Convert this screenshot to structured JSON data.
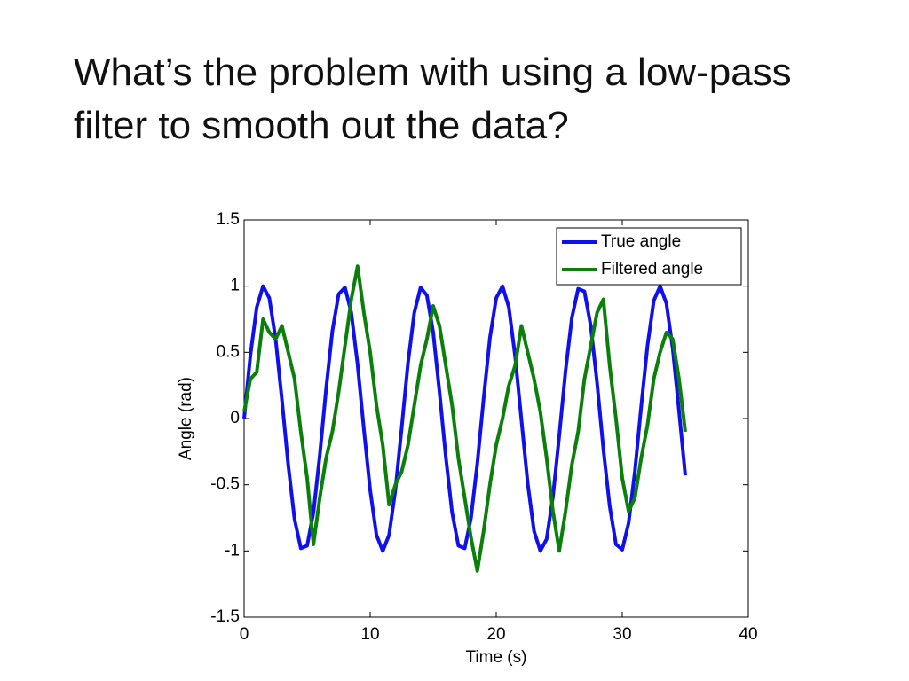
{
  "title": "What’s the problem with using a low-pass filter to smooth out the data?",
  "chart_data": {
    "type": "line",
    "xlabel": "Time (s)",
    "ylabel": "Angle (rad)",
    "x": [
      0,
      0.5,
      1,
      1.5,
      2,
      2.5,
      3,
      3.5,
      4,
      4.5,
      5,
      5.5,
      6,
      6.5,
      7,
      7.5,
      8,
      8.5,
      9,
      9.5,
      10,
      10.5,
      11,
      11.5,
      12,
      12.5,
      13,
      13.5,
      14,
      14.5,
      15,
      15.5,
      16,
      16.5,
      17,
      17.5,
      18,
      18.5,
      19,
      19.5,
      20,
      20.5,
      21,
      21.5,
      22,
      22.5,
      23,
      23.5,
      24,
      24.5,
      25,
      25.5,
      26,
      26.5,
      27,
      27.5,
      28,
      28.5,
      29,
      29.5,
      30,
      30.5,
      31,
      31.5,
      32,
      32.5,
      33,
      33.5,
      34,
      34.5,
      35
    ],
    "series": [
      {
        "name": "True angle",
        "color": "#1010ee",
        "values": [
          0,
          0.48,
          0.84,
          1.0,
          0.91,
          0.6,
          0.14,
          -0.35,
          -0.76,
          -0.98,
          -0.96,
          -0.71,
          -0.28,
          0.22,
          0.66,
          0.94,
          0.99,
          0.8,
          0.41,
          -0.08,
          -0.54,
          -0.88,
          -1.0,
          -0.88,
          -0.54,
          -0.07,
          0.42,
          0.8,
          0.99,
          0.93,
          0.65,
          0.2,
          -0.29,
          -0.71,
          -0.96,
          -0.98,
          -0.75,
          -0.34,
          0.15,
          0.61,
          0.91,
          1.0,
          0.84,
          0.47,
          -0.01,
          -0.49,
          -0.85,
          -1.0,
          -0.91,
          -0.59,
          -0.13,
          0.36,
          0.76,
          0.98,
          0.96,
          0.7,
          0.27,
          -0.23,
          -0.66,
          -0.95,
          -0.99,
          -0.79,
          -0.4,
          0.09,
          0.55,
          0.89,
          1.0,
          0.87,
          0.53,
          0.06,
          -0.43
        ]
      },
      {
        "name": "Filtered angle",
        "color": "#0a800a",
        "values": [
          0.05,
          0.3,
          0.35,
          0.75,
          0.65,
          0.6,
          0.7,
          0.5,
          0.3,
          -0.1,
          -0.45,
          -0.95,
          -0.6,
          -0.3,
          -0.1,
          0.2,
          0.55,
          0.9,
          1.15,
          0.8,
          0.5,
          0.1,
          -0.2,
          -0.65,
          -0.5,
          -0.4,
          -0.2,
          0.1,
          0.4,
          0.6,
          0.85,
          0.7,
          0.4,
          0.1,
          -0.3,
          -0.6,
          -0.9,
          -1.15,
          -0.85,
          -0.5,
          -0.2,
          0.0,
          0.25,
          0.4,
          0.7,
          0.5,
          0.3,
          0.05,
          -0.3,
          -0.7,
          -1.0,
          -0.7,
          -0.35,
          -0.1,
          0.3,
          0.55,
          0.8,
          0.9,
          0.4,
          0.0,
          -0.45,
          -0.7,
          -0.6,
          -0.3,
          -0.05,
          0.3,
          0.5,
          0.65,
          0.6,
          0.3,
          -0.1
        ]
      }
    ],
    "xlim": [
      0,
      40
    ],
    "xticks": [
      0,
      10,
      20,
      30,
      40
    ],
    "ylim": [
      -1.5,
      1.5
    ],
    "yticks": [
      -1.5,
      -1,
      -0.5,
      0,
      0.5,
      1,
      1.5
    ],
    "legend": "upper right",
    "grid": false
  }
}
